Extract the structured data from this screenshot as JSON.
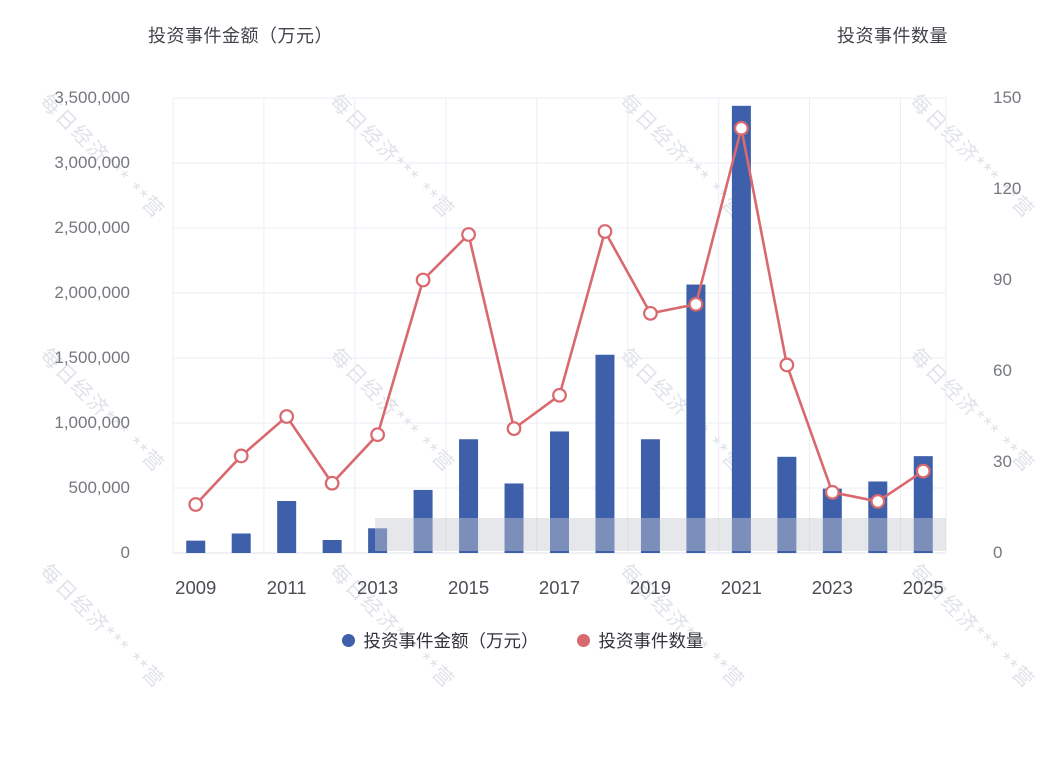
{
  "titles": {
    "left": "投资事件金额（万元）",
    "right": "投资事件数量"
  },
  "legend": {
    "items": [
      {
        "label": "投资事件金额（万元）",
        "color": "#3E5FA9",
        "series": "amount"
      },
      {
        "label": "投资事件数量",
        "color": "#D9696E",
        "series": "count"
      }
    ]
  },
  "watermark": {
    "text": "每日经济***",
    "suffix": "**营",
    "color": "#b9c0ce"
  },
  "chart_data": {
    "type": "bar",
    "subtype": "dual-axis bar + line",
    "categories": [
      "2009",
      "2010",
      "2011",
      "2012",
      "2013",
      "2014",
      "2015",
      "2016",
      "2017",
      "2018",
      "2019",
      "2020",
      "2021",
      "2022",
      "2023",
      "2024",
      "2025"
    ],
    "x_tick_labels": [
      "2009",
      "2011",
      "2013",
      "2015",
      "2017",
      "2019",
      "2021",
      "2023",
      "2025"
    ],
    "x_tick_indices": [
      0,
      2,
      4,
      6,
      8,
      10,
      12,
      14,
      16
    ],
    "series": [
      {
        "name": "投资事件金额（万元）",
        "type": "bar",
        "axis": "left",
        "color": "#3E5FA9",
        "values": [
          95000,
          150000,
          400000,
          100000,
          190000,
          485000,
          875000,
          535000,
          935000,
          1525000,
          875000,
          2065000,
          3440000,
          740000,
          495000,
          550000,
          745000
        ]
      },
      {
        "name": "投资事件数量",
        "type": "line",
        "axis": "right",
        "color": "#D9696E",
        "marker": "circle-white-fill",
        "values": [
          16,
          32,
          45,
          23,
          39,
          90,
          105,
          41,
          52,
          106,
          79,
          82,
          140,
          62,
          20,
          17,
          27
        ]
      }
    ],
    "left_axis": {
      "title": "投资事件金额（万元）",
      "min": 0,
      "max": 3500000,
      "tick_step": 500000,
      "tick_values": [
        0,
        500000,
        1000000,
        1500000,
        2000000,
        2500000,
        3000000,
        3500000
      ],
      "tick_labels": [
        "0",
        "500,000",
        "1,000,000",
        "1,500,000",
        "2,000,000",
        "2,500,000",
        "3,000,000",
        "3,500,000"
      ]
    },
    "right_axis": {
      "title": "投资事件数量",
      "min": 0,
      "max": 150,
      "tick_step": 30,
      "tick_values": [
        0,
        30,
        60,
        90,
        120,
        150
      ],
      "tick_labels": [
        "0",
        "30",
        "60",
        "90",
        "120",
        "150"
      ]
    },
    "grid": true,
    "legend_position": "bottom"
  }
}
